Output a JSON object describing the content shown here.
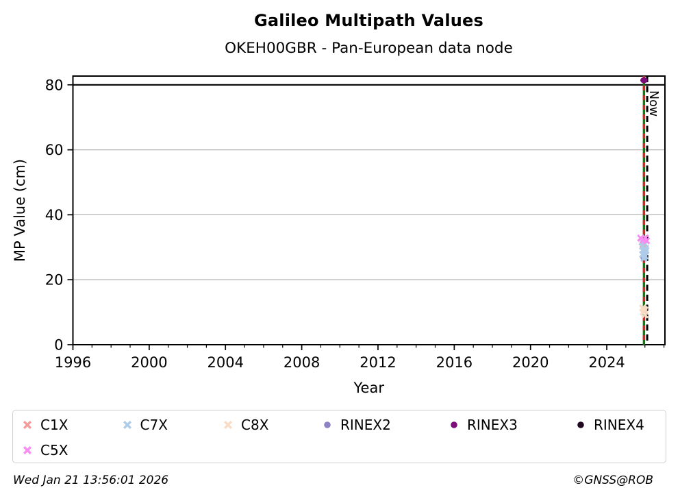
{
  "figure": {
    "footer_left": "Wed Jan 21 13:56:01 2026",
    "footer_right": "©GNSS@ROB"
  },
  "chart_data": {
    "type": "scatter",
    "title": "Galileo Multipath Values",
    "subtitle": "OKEH00GBR - Pan-European data node",
    "xlabel": "Year",
    "ylabel": "MP Value (cm)",
    "xlim": [
      1996,
      2027.05
    ],
    "ylim": [
      0,
      82.7
    ],
    "x_major_ticks": [
      1996,
      2000,
      2004,
      2008,
      2012,
      2016,
      2020,
      2024
    ],
    "x_minor_tick_interval": 1,
    "y_ticks": [
      0,
      20,
      40,
      60,
      80
    ],
    "grid": "horizontal",
    "gridline_color": "#b4b4b4",
    "cap_line": {
      "y": 80,
      "color": "#000000"
    },
    "annotations": {
      "event_line": {
        "x": 2025.95,
        "solid_color": "#0a7d0a",
        "dash_color": "#dc2323"
      },
      "now_line": {
        "x": 2026.12,
        "label": "Now",
        "color": "#000000",
        "style": "dashed"
      }
    },
    "legend_position": "bottom",
    "series": [
      {
        "name": "C1X",
        "marker": "x",
        "color": "#f49c9a",
        "points": [
          [
            2025.9,
            30.8
          ],
          [
            2025.95,
            10.2
          ]
        ]
      },
      {
        "name": "C7X",
        "marker": "x",
        "color": "#aecbe8",
        "points": [
          [
            2025.85,
            31.6
          ],
          [
            2026.0,
            31.0
          ],
          [
            2025.88,
            30.3
          ],
          [
            2026.02,
            29.6
          ],
          [
            2025.92,
            28.9
          ],
          [
            2026.05,
            29.0
          ],
          [
            2025.95,
            28.1
          ],
          [
            2026.0,
            27.3
          ],
          [
            2025.88,
            27.8
          ],
          [
            2025.95,
            26.6
          ]
        ]
      },
      {
        "name": "C8X",
        "marker": "x",
        "color": "#f9dcc5",
        "points": [
          [
            2025.88,
            11.3
          ],
          [
            2026.0,
            10.7
          ],
          [
            2025.92,
            10.0
          ],
          [
            2026.0,
            9.2
          ],
          [
            2025.95,
            10.9
          ]
        ]
      },
      {
        "name": "RINEX2",
        "marker": "circle",
        "color": "#8b83c3",
        "points": [
          [
            2025.95,
            26.8
          ]
        ]
      },
      {
        "name": "RINEX3",
        "marker": "circle",
        "color": "#7b0e7b",
        "points": [
          [
            2025.95,
            81.4
          ]
        ]
      },
      {
        "name": "RINEX4",
        "marker": "circle",
        "color": "#1f0a22",
        "points": []
      },
      {
        "name": "C5X",
        "marker": "x",
        "color": "#f98bf0",
        "points": [
          [
            2025.78,
            32.8
          ],
          [
            2025.92,
            32.3
          ],
          [
            2026.02,
            32.9
          ],
          [
            2026.08,
            32.0
          ]
        ]
      }
    ]
  }
}
